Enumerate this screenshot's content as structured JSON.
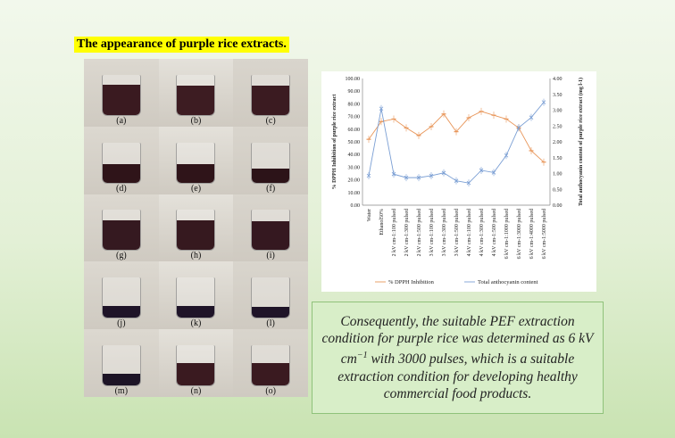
{
  "title": "The appearance of purple rice extracts.",
  "photos": [
    {
      "label": "(a)",
      "color": "#3a1a20",
      "fill": 0.75
    },
    {
      "label": "(b)",
      "color": "#3d1c22",
      "fill": 0.72
    },
    {
      "label": "(c)",
      "color": "#3b1b21",
      "fill": 0.72
    },
    {
      "label": "(d)",
      "color": "#2f1419",
      "fill": 0.45
    },
    {
      "label": "(e)",
      "color": "#2f1419",
      "fill": 0.45
    },
    {
      "label": "(f)",
      "color": "#2c1318",
      "fill": 0.35
    },
    {
      "label": "(g)",
      "color": "#351920",
      "fill": 0.75
    },
    {
      "label": "(h)",
      "color": "#36191f",
      "fill": 0.75
    },
    {
      "label": "(i)",
      "color": "#351820",
      "fill": 0.72
    },
    {
      "label": "(j)",
      "color": "#1f1428",
      "fill": 0.3
    },
    {
      "label": "(k)",
      "color": "#1f1428",
      "fill": 0.3
    },
    {
      "label": "(l)",
      "color": "#1f1428",
      "fill": 0.28
    },
    {
      "label": "(m)",
      "color": "#1d1426",
      "fill": 0.3
    },
    {
      "label": "(n)",
      "color": "#3a1a20",
      "fill": 0.55
    },
    {
      "label": "(o)",
      "color": "#3a1a20",
      "fill": 0.55
    }
  ],
  "chart_data": {
    "type": "line",
    "categories": [
      "Water",
      "Ethanol50%",
      "2 kV cm-1:100 pulsed",
      "2 kV cm-1:300 pulsed",
      "2 kV cm-1:500 pulsed",
      "3 kV cm-1:100 pulsed",
      "3 kV cm-1:300 pulsed",
      "3 kV cm-1:500 pulsed",
      "4 kV cm-1:100 pulsed",
      "4 kV cm-1:300 pulsed",
      "4 kV cm-1:500 pulsed",
      "6 kV cm-1:1000 pulsed",
      "6 kV cm-1:3000 pulsed",
      "6 kV cm-1:4000 pulsed",
      "6 kV cm-1:5000 pulsed"
    ],
    "ylabel": "% DPPH Inhibition of purple rice extract",
    "y2label": "Total anthocyanin content of purple rice extract (mg l-1)",
    "ylim": [
      0,
      100
    ],
    "y2lim": [
      0,
      4
    ],
    "yticks": [
      "0.00",
      "10.00",
      "20.00",
      "30.00",
      "40.00",
      "50.00",
      "60.00",
      "70.00",
      "80.00",
      "90.00",
      "100.00"
    ],
    "y2ticks": [
      "0.00",
      "0.50",
      "1.00",
      "1.50",
      "2.00",
      "2.50",
      "3.00",
      "3.50",
      "4.00"
    ],
    "series": [
      {
        "name": "% DPPH Inhibition",
        "axis": "left",
        "color": "#e8965a",
        "marker": "dash",
        "values": [
          52,
          66,
          68,
          61,
          55,
          62,
          72,
          58,
          69,
          74,
          71,
          68,
          61,
          43,
          34
        ]
      },
      {
        "name": "Total anthocyanin content",
        "axis": "right",
        "color": "#7b9fd4",
        "marker": "x",
        "values": [
          0.93,
          3.05,
          0.98,
          0.87,
          0.87,
          0.93,
          1.02,
          0.77,
          0.7,
          1.1,
          1.03,
          1.57,
          2.45,
          2.77,
          3.25
        ]
      }
    ],
    "legend": "bottom",
    "grid": false
  },
  "conclusion": {
    "part1": "Consequently, the suitable PEF extraction condition for purple rice was determined as 6 kV cm",
    "sup": "−1",
    "part2": " with 3000 pulses, which is a suitable extraction condition for developing healthy commercial food products."
  }
}
